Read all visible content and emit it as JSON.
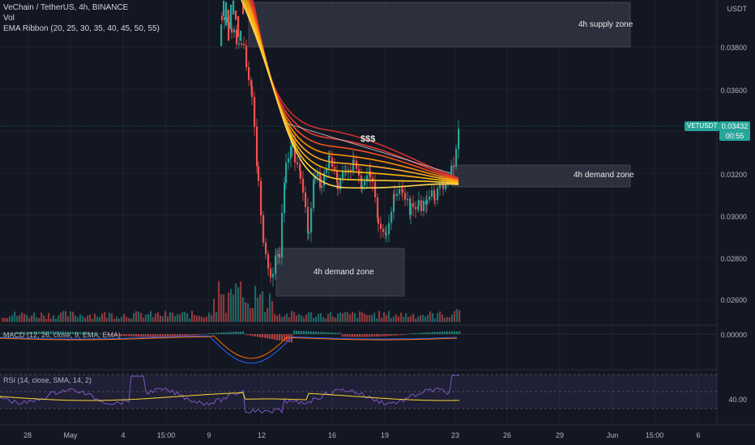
{
  "header": {
    "symbol_title": "VeChain / TetherUS, 4h, BINANCE",
    "vol_label": "Vol",
    "ema_label": "EMA Ribbon (20, 25, 30, 35, 40, 45, 50, 55)"
  },
  "price_axis": {
    "currency": "USDT",
    "ticks": [
      "0.03800",
      "0.03600",
      "0.03200",
      "0.03000",
      "0.02800",
      "0.02600"
    ],
    "macd_tick": "0.00000",
    "rsi_tick": "40.00"
  },
  "badges": {
    "symbol": "VETUSDT",
    "price": "0.03432",
    "countdown": "00:55"
  },
  "annotations": {
    "supply_zone": "4h supply zone",
    "demand_zone_upper": "4h demand zone",
    "demand_zone_lower": "4h demand zone",
    "liquidity": "$$$"
  },
  "indicators": {
    "macd": "MACD (12, 26, close, 9, EMA, EMA)",
    "rsi": "RSI (14, close, SMA, 14, 2)"
  },
  "date_axis": [
    "28",
    "May",
    "4",
    "15:00",
    "9",
    "12",
    "16",
    "19",
    "23",
    "26",
    "29",
    "Jun",
    "15:00",
    "6"
  ],
  "colors": {
    "background": "#131722",
    "up": "#26a69a",
    "down": "#ef5350",
    "ema_slow": "#e53935",
    "ema_fast": "#ffd54f",
    "zone_fill": "#363a45",
    "rsi_line": "#7e57c2",
    "rsi_ma": "#fdd835",
    "macd_line": "#2962ff",
    "signal_line": "#ff6d00"
  }
}
